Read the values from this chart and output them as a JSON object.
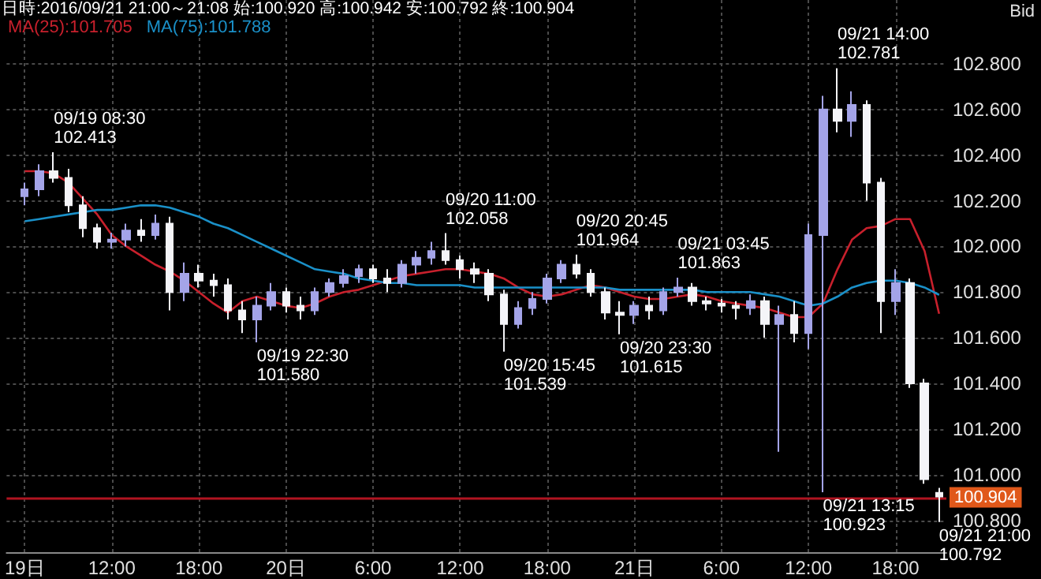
{
  "chart_data": {
    "type": "candlestick",
    "title": "日時:2016/09/21 21:00～21:08 始:100.920 高:100.942 安:100.792 終:100.904",
    "annotations": [
      "Bid",
      {
        "text": "09/19 08:30\n102.413",
        "x": "2016-09-19T08:00",
        "y": 102.413
      },
      {
        "text": "09/19 22:30\n101.580",
        "x": "2016-09-19T22:00",
        "y": 101.58
      },
      {
        "text": "09/20 11:00\n102.058",
        "x": "2016-09-20T11:00",
        "y": 102.058
      },
      {
        "text": "09/20 15:45\n101.539",
        "x": "2016-09-20T15:00",
        "y": 101.539
      },
      {
        "text": "09/20 20:45\n101.964",
        "x": "2016-09-20T20:00",
        "y": 101.964
      },
      {
        "text": "09/20 23:30\n101.615",
        "x": "2016-09-20T23:00",
        "y": 101.615
      },
      {
        "text": "09/21 03:45\n101.863",
        "x": "2016-09-21T03:00",
        "y": 101.863
      },
      {
        "text": "09/21 14:00\n102.781",
        "x": "2016-09-21T14:00",
        "y": 102.781
      },
      {
        "text": "09/21 13:15\n100.923",
        "x": "2016-09-21T13:00",
        "y": 100.923
      },
      {
        "text": "09/21 21:00\n100.792",
        "x": "2016-09-21T21:00",
        "y": 100.792
      }
    ],
    "x": [
      "2016-09-19T06:00",
      "2016-09-19T07:00",
      "2016-09-19T08:00",
      "2016-09-19T09:00",
      "2016-09-19T10:00",
      "2016-09-19T11:00",
      "2016-09-19T12:00",
      "2016-09-19T13:00",
      "2016-09-19T14:00",
      "2016-09-19T15:00",
      "2016-09-19T16:00",
      "2016-09-19T17:00",
      "2016-09-19T18:00",
      "2016-09-19T19:00",
      "2016-09-19T20:00",
      "2016-09-19T21:00",
      "2016-09-19T22:00",
      "2016-09-19T23:00",
      "2016-09-20T00:00",
      "2016-09-20T01:00",
      "2016-09-20T02:00",
      "2016-09-20T03:00",
      "2016-09-20T04:00",
      "2016-09-20T05:00",
      "2016-09-20T06:00",
      "2016-09-20T07:00",
      "2016-09-20T08:00",
      "2016-09-20T09:00",
      "2016-09-20T10:00",
      "2016-09-20T11:00",
      "2016-09-20T12:00",
      "2016-09-20T13:00",
      "2016-09-20T14:00",
      "2016-09-20T15:00",
      "2016-09-20T16:00",
      "2016-09-20T17:00",
      "2016-09-20T18:00",
      "2016-09-20T19:00",
      "2016-09-20T20:00",
      "2016-09-20T21:00",
      "2016-09-20T22:00",
      "2016-09-20T23:00",
      "2016-09-21T00:00",
      "2016-09-21T01:00",
      "2016-09-21T02:00",
      "2016-09-21T03:00",
      "2016-09-21T04:00",
      "2016-09-21T05:00",
      "2016-09-21T06:00",
      "2016-09-21T07:00",
      "2016-09-21T08:00",
      "2016-09-21T09:00",
      "2016-09-21T10:00",
      "2016-09-21T11:00",
      "2016-09-21T12:00",
      "2016-09-21T13:00",
      "2016-09-21T14:00",
      "2016-09-21T15:00",
      "2016-09-21T16:00",
      "2016-09-21T17:00",
      "2016-09-21T18:00",
      "2016-09-21T19:00",
      "2016-09-21T20:00",
      "2016-09-21T21:00"
    ],
    "ohlc": [
      [
        102.22,
        102.28,
        102.18,
        102.25
      ],
      [
        102.25,
        102.36,
        102.22,
        102.33
      ],
      [
        102.33,
        102.413,
        102.28,
        102.3
      ],
      [
        102.3,
        102.34,
        102.15,
        102.18
      ],
      [
        102.18,
        102.22,
        102.04,
        102.08
      ],
      [
        102.08,
        102.1,
        101.99,
        102.02
      ],
      [
        102.02,
        102.06,
        101.99,
        102.03
      ],
      [
        102.03,
        102.1,
        102.0,
        102.07
      ],
      [
        102.07,
        102.12,
        102.02,
        102.05
      ],
      [
        102.05,
        102.14,
        102.03,
        102.1
      ],
      [
        102.1,
        102.13,
        101.72,
        101.8
      ],
      [
        101.8,
        101.93,
        101.76,
        101.88
      ],
      [
        101.88,
        101.92,
        101.82,
        101.85
      ],
      [
        101.85,
        101.88,
        101.78,
        101.83
      ],
      [
        101.83,
        101.86,
        101.68,
        101.72
      ],
      [
        101.72,
        101.76,
        101.62,
        101.68
      ],
      [
        101.68,
        101.78,
        101.58,
        101.74
      ],
      [
        101.74,
        101.84,
        101.72,
        101.8
      ],
      [
        101.8,
        101.82,
        101.71,
        101.74
      ],
      [
        101.74,
        101.78,
        101.68,
        101.72
      ],
      [
        101.72,
        101.82,
        101.7,
        101.8
      ],
      [
        101.8,
        101.86,
        101.78,
        101.84
      ],
      [
        101.84,
        101.9,
        101.82,
        101.87
      ],
      [
        101.87,
        101.92,
        101.84,
        101.9
      ],
      [
        101.9,
        101.92,
        101.84,
        101.86
      ],
      [
        101.86,
        101.9,
        101.8,
        101.84
      ],
      [
        101.84,
        101.94,
        101.82,
        101.92
      ],
      [
        101.92,
        101.98,
        101.88,
        101.95
      ],
      [
        101.95,
        102.02,
        101.92,
        101.98
      ],
      [
        101.98,
        102.058,
        101.92,
        101.94
      ],
      [
        101.94,
        101.96,
        101.86,
        101.9
      ],
      [
        101.9,
        101.93,
        101.84,
        101.88
      ],
      [
        101.88,
        101.9,
        101.76,
        101.79
      ],
      [
        101.79,
        101.81,
        101.539,
        101.66
      ],
      [
        101.66,
        101.76,
        101.64,
        101.73
      ],
      [
        101.73,
        101.8,
        101.7,
        101.77
      ],
      [
        101.77,
        101.88,
        101.75,
        101.86
      ],
      [
        101.86,
        101.94,
        101.84,
        101.92
      ],
      [
        101.92,
        101.964,
        101.86,
        101.88
      ],
      [
        101.88,
        101.9,
        101.78,
        101.8
      ],
      [
        101.8,
        101.82,
        101.68,
        101.71
      ],
      [
        101.71,
        101.76,
        101.615,
        101.7
      ],
      [
        101.7,
        101.76,
        101.66,
        101.74
      ],
      [
        101.74,
        101.78,
        101.68,
        101.72
      ],
      [
        101.72,
        101.82,
        101.7,
        101.8
      ],
      [
        101.8,
        101.863,
        101.78,
        101.82
      ],
      [
        101.82,
        101.84,
        101.74,
        101.76
      ],
      [
        101.76,
        101.78,
        101.72,
        101.75
      ],
      [
        101.75,
        101.77,
        101.71,
        101.74
      ],
      [
        101.74,
        101.76,
        101.68,
        101.73
      ],
      [
        101.73,
        101.79,
        101.7,
        101.76
      ],
      [
        101.76,
        101.78,
        101.6,
        101.66
      ],
      [
        101.66,
        101.74,
        101.1,
        101.7
      ],
      [
        101.7,
        101.76,
        101.58,
        101.62
      ],
      [
        101.62,
        102.1,
        101.55,
        102.05
      ],
      [
        102.05,
        102.66,
        100.923,
        102.6
      ],
      [
        102.6,
        102.781,
        102.5,
        102.55
      ],
      [
        102.55,
        102.68,
        102.48,
        102.62
      ],
      [
        102.62,
        102.64,
        102.2,
        102.28
      ],
      [
        102.28,
        102.3,
        101.62,
        101.76
      ],
      [
        101.76,
        101.9,
        101.7,
        101.84
      ],
      [
        101.84,
        101.86,
        101.38,
        101.4
      ],
      [
        101.4,
        101.42,
        100.96,
        100.98
      ],
      [
        100.92,
        100.942,
        100.792,
        100.904
      ]
    ],
    "colors": [
      "#a4a4e8",
      "#a4a4e8",
      "#f4f4f8",
      "#f4f4f8",
      "#f4f4f8",
      "#f4f4f8",
      "#a4a4e8",
      "#a4a4e8",
      "#f4f4f8",
      "#a4a4e8",
      "#f4f4f8",
      "#a4a4e8",
      "#f4f4f8",
      "#f4f4f8",
      "#f4f4f8",
      "#f4f4f8",
      "#a4a4e8",
      "#a4a4e8",
      "#f4f4f8",
      "#f4f4f8",
      "#a4a4e8",
      "#a4a4e8",
      "#a4a4e8",
      "#a4a4e8",
      "#f4f4f8",
      "#f4f4f8",
      "#a4a4e8",
      "#a4a4e8",
      "#a4a4e8",
      "#f4f4f8",
      "#f4f4f8",
      "#f4f4f8",
      "#f4f4f8",
      "#f4f4f8",
      "#a4a4e8",
      "#a4a4e8",
      "#a4a4e8",
      "#a4a4e8",
      "#f4f4f8",
      "#f4f4f8",
      "#f4f4f8",
      "#f4f4f8",
      "#a4a4e8",
      "#f4f4f8",
      "#a4a4e8",
      "#a4a4e8",
      "#f4f4f8",
      "#f4f4f8",
      "#f4f4f8",
      "#f4f4f8",
      "#a4a4e8",
      "#f4f4f8",
      "#a4a4e8",
      "#f4f4f8",
      "#a4a4e8",
      "#a4a4e8",
      "#f4f4f8",
      "#a4a4e8",
      "#f4f4f8",
      "#f4f4f8",
      "#a4a4e8",
      "#f4f4f8",
      "#f4f4f8",
      "#f4f4f8"
    ],
    "series": [
      {
        "type": "line",
        "name": "MA(25):101.705",
        "color": "#c8202c",
        "values": [
          102.33,
          102.33,
          102.32,
          102.28,
          102.21,
          102.14,
          102.05,
          102.0,
          101.96,
          101.92,
          101.89,
          101.85,
          101.8,
          101.75,
          101.71,
          101.76,
          101.78,
          101.76,
          101.74,
          101.73,
          101.75,
          101.78,
          101.8,
          101.81,
          101.83,
          101.85,
          101.87,
          101.88,
          101.89,
          101.9,
          101.9,
          101.89,
          101.88,
          101.86,
          101.82,
          101.79,
          101.78,
          101.79,
          101.81,
          101.83,
          101.82,
          101.8,
          101.78,
          101.77,
          101.77,
          101.78,
          101.79,
          101.78,
          101.76,
          101.75,
          101.74,
          101.73,
          101.71,
          101.69,
          101.69,
          101.75,
          101.9,
          102.03,
          102.08,
          102.09,
          102.12,
          102.12,
          101.98,
          101.705
        ]
      },
      {
        "type": "line",
        "name": "MA(75):101.788",
        "color": "#1a90c8",
        "values": [
          102.11,
          102.12,
          102.13,
          102.14,
          102.15,
          102.16,
          102.16,
          102.17,
          102.18,
          102.18,
          102.17,
          102.15,
          102.13,
          102.1,
          102.08,
          102.05,
          102.02,
          101.99,
          101.96,
          101.93,
          101.9,
          101.89,
          101.88,
          101.86,
          101.85,
          101.84,
          101.84,
          101.83,
          101.83,
          101.83,
          101.83,
          101.82,
          101.82,
          101.82,
          101.82,
          101.82,
          101.82,
          101.82,
          101.82,
          101.82,
          101.82,
          101.81,
          101.81,
          101.81,
          101.81,
          101.81,
          101.81,
          101.8,
          101.8,
          101.8,
          101.8,
          101.79,
          101.78,
          101.76,
          101.74,
          101.75,
          101.78,
          101.82,
          101.84,
          101.85,
          101.85,
          101.84,
          101.82,
          101.788
        ]
      }
    ],
    "xlim": [
      "2016-09-19T04:45",
      "2016-09-21T21:30"
    ],
    "xticks": [
      {
        "value": "2016-09-19T06:00",
        "label": "19日"
      },
      {
        "value": "2016-09-19T12:00",
        "label": "12:00"
      },
      {
        "value": "2016-09-19T18:00",
        "label": "18:00"
      },
      {
        "value": "2016-09-20T00:00",
        "label": "20日"
      },
      {
        "value": "2016-09-20T06:00",
        "label": "6:00"
      },
      {
        "value": "2016-09-20T12:00",
        "label": "12:00"
      },
      {
        "value": "2016-09-20T18:00",
        "label": "18:00"
      },
      {
        "value": "2016-09-21T00:00",
        "label": "21日"
      },
      {
        "value": "2016-09-21T06:00",
        "label": "6:00"
      },
      {
        "value": "2016-09-21T12:00",
        "label": "12:00"
      },
      {
        "value": "2016-09-21T18:00",
        "label": "18:00"
      }
    ],
    "ylim": [
      100.66,
      103.08
    ],
    "yticks": [
      {
        "value": 100.8,
        "label": "100.800"
      },
      {
        "value": 101.0,
        "label": "101.000"
      },
      {
        "value": 101.2,
        "label": "101.200"
      },
      {
        "value": 101.4,
        "label": "101.400"
      },
      {
        "value": 101.6,
        "label": "101.600"
      },
      {
        "value": 101.8,
        "label": "101.800"
      },
      {
        "value": 102.0,
        "label": "102.000"
      },
      {
        "value": 102.2,
        "label": "102.200"
      },
      {
        "value": 102.4,
        "label": "102.400"
      },
      {
        "value": 102.6,
        "label": "102.600"
      },
      {
        "value": 102.8,
        "label": "102.800"
      }
    ],
    "ref_lines": [
      {
        "axis": "y",
        "value": 100.904,
        "label": "100.904",
        "color": "#b01420"
      }
    ],
    "grid": true,
    "legend": "top left"
  }
}
